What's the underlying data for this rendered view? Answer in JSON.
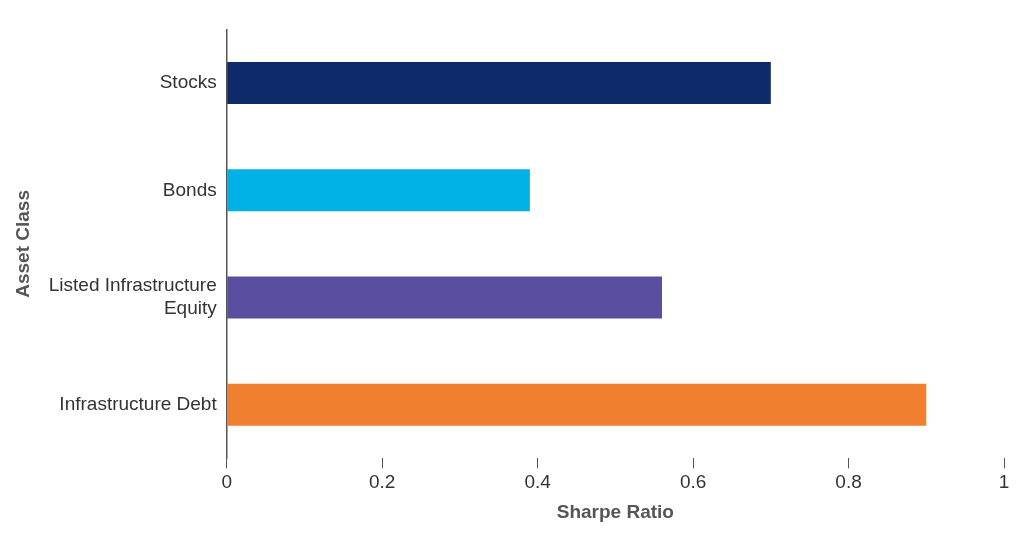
{
  "chart_data": {
    "type": "bar",
    "orientation": "horizontal",
    "xlabel": "Sharpe Ratio",
    "ylabel": "Asset Class",
    "categories": [
      "Stocks",
      "Bonds",
      "Listed Infrastructure Equity",
      "Infrastructure Debt"
    ],
    "values": [
      0.7,
      0.39,
      0.56,
      0.9
    ],
    "colors": [
      "#0f2a6b",
      "#00b1e6",
      "#5a4ea0",
      "#f07f30"
    ],
    "xlim": [
      0,
      1
    ],
    "xticks": [
      0,
      0.2,
      0.4,
      0.6,
      0.8,
      1
    ],
    "grid": false,
    "legend": false
  }
}
